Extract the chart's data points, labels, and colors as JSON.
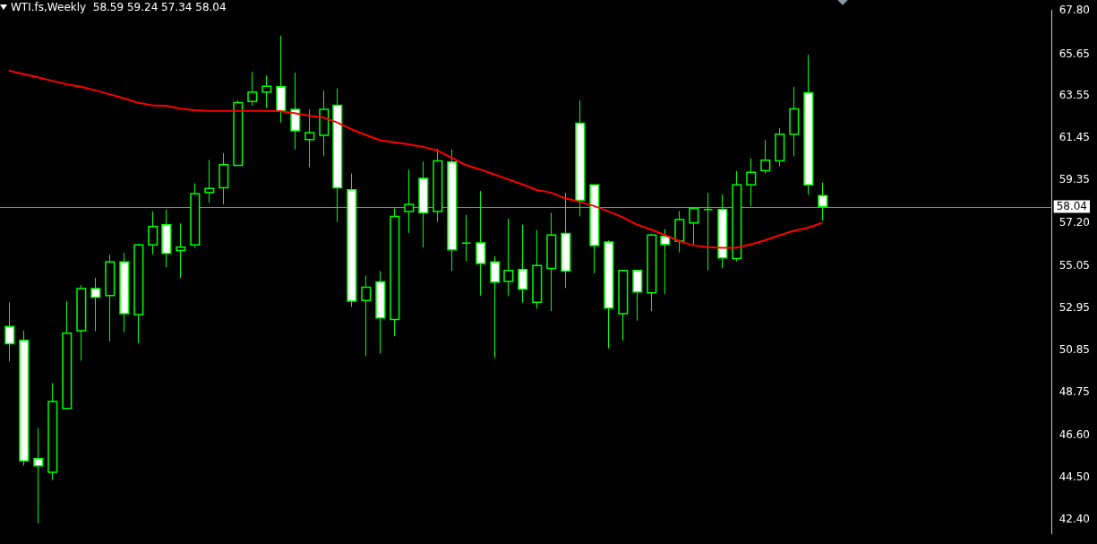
{
  "chart_data": {
    "type": "candlestick",
    "title": "WTI.fs,Weekly  58.59 59.24 57.34 58.04",
    "color": "#00ff00",
    "categories": [
      null,
      null,
      null,
      null,
      null,
      null,
      null,
      null,
      null,
      null,
      null,
      null,
      null,
      null,
      null,
      null,
      null,
      null,
      null,
      null,
      null,
      null,
      null,
      null,
      null,
      null,
      null,
      null,
      null,
      null,
      null,
      null,
      null,
      null,
      null,
      null,
      null,
      null,
      null,
      null,
      null,
      null,
      null,
      null,
      null,
      null,
      null,
      null,
      null,
      null,
      null,
      null,
      null,
      null,
      null,
      null,
      null,
      null
    ],
    "ohlc": [
      [
        52.06,
        53.26,
        50.31,
        51.2
      ],
      [
        51.36,
        51.85,
        45.11,
        45.35
      ],
      [
        45.46,
        46.98,
        42.23,
        45.1
      ],
      [
        44.78,
        49.23,
        44.4,
        48.31
      ],
      [
        47.97,
        53.32,
        47.97,
        51.72
      ],
      [
        51.85,
        54.12,
        50.35,
        53.95
      ],
      [
        53.95,
        54.48,
        51.82,
        53.51
      ],
      [
        53.6,
        55.65,
        51.32,
        55.28
      ],
      [
        55.28,
        55.73,
        51.78,
        52.7
      ],
      [
        52.65,
        56.18,
        51.22,
        56.13
      ],
      [
        56.13,
        57.8,
        55.65,
        57.05
      ],
      [
        57.14,
        57.88,
        55.01,
        55.7
      ],
      [
        55.85,
        57.2,
        54.48,
        56.02
      ],
      [
        56.13,
        59.2,
        55.98,
        58.68
      ],
      [
        58.75,
        60.37,
        58.23,
        58.95
      ],
      [
        58.98,
        60.7,
        58.15,
        60.13
      ],
      [
        60.1,
        63.35,
        60.1,
        63.23
      ],
      [
        63.29,
        64.75,
        63.08,
        63.75
      ],
      [
        63.75,
        64.58,
        62.97,
        64.05
      ],
      [
        64.02,
        66.57,
        62.24,
        62.82
      ],
      [
        62.89,
        64.72,
        60.9,
        61.82
      ],
      [
        61.38,
        62.9,
        60.0,
        61.73
      ],
      [
        61.6,
        63.82,
        60.58,
        62.89
      ],
      [
        63.1,
        63.94,
        57.28,
        58.98
      ],
      [
        58.88,
        59.69,
        53.03,
        53.32
      ],
      [
        53.35,
        54.6,
        50.58,
        54.02
      ],
      [
        54.28,
        54.82,
        50.7,
        52.48
      ],
      [
        52.4,
        57.95,
        51.57,
        57.55
      ],
      [
        57.79,
        59.88,
        56.73,
        58.15
      ],
      [
        59.45,
        60.28,
        56.0,
        57.73
      ],
      [
        57.79,
        60.93,
        57.28,
        60.32
      ],
      [
        60.27,
        60.89,
        54.83,
        55.88
      ],
      [
        56.22,
        57.62,
        55.32,
        56.22
      ],
      [
        56.23,
        58.82,
        53.6,
        55.2
      ],
      [
        55.28,
        55.57,
        50.48,
        54.27
      ],
      [
        54.3,
        57.43,
        53.57,
        54.85
      ],
      [
        54.9,
        57.14,
        53.25,
        53.91
      ],
      [
        53.26,
        56.86,
        52.95,
        55.1
      ],
      [
        54.95,
        57.73,
        52.82,
        56.62
      ],
      [
        56.7,
        58.72,
        53.98,
        54.82
      ],
      [
        62.2,
        63.33,
        57.55,
        58.35
      ],
      [
        59.12,
        59.12,
        54.71,
        56.1
      ],
      [
        56.27,
        56.35,
        50.96,
        52.97
      ],
      [
        52.7,
        54.88,
        51.35,
        54.85
      ],
      [
        54.85,
        54.85,
        52.35,
        53.78
      ],
      [
        53.73,
        56.68,
        52.82,
        56.62
      ],
      [
        56.55,
        56.92,
        53.68,
        56.15
      ],
      [
        56.32,
        57.81,
        55.75,
        57.39
      ],
      [
        57.22,
        58.02,
        56.15,
        57.95
      ],
      [
        57.9,
        58.72,
        54.85,
        57.9
      ],
      [
        57.9,
        58.65,
        54.97,
        55.48
      ],
      [
        55.45,
        59.82,
        55.32,
        59.12
      ],
      [
        59.12,
        60.45,
        58.05,
        59.75
      ],
      [
        59.83,
        61.37,
        59.69,
        60.35
      ],
      [
        60.32,
        61.95,
        60.05,
        61.65
      ],
      [
        61.65,
        64.02,
        60.55,
        62.92
      ],
      [
        63.72,
        65.62,
        58.63,
        59.12
      ],
      [
        58.59,
        59.24,
        57.34,
        58.04
      ]
    ],
    "series": [
      {
        "type": "line",
        "color": "#ff0000",
        "values": [
          64.82,
          64.65,
          64.49,
          64.32,
          64.15,
          64.02,
          63.85,
          63.65,
          63.45,
          63.23,
          63.1,
          63.07,
          62.93,
          62.85,
          62.82,
          62.82,
          62.82,
          62.82,
          62.82,
          62.8,
          62.7,
          62.58,
          62.49,
          62.24,
          61.9,
          61.62,
          61.35,
          61.25,
          61.15,
          61.02,
          60.85,
          60.49,
          60.12,
          59.9,
          59.65,
          59.4,
          59.15,
          58.87,
          58.74,
          58.45,
          58.28,
          58.08,
          57.81,
          57.52,
          57.15,
          56.9,
          56.62,
          56.32,
          56.1,
          56.02,
          55.98,
          55.98,
          56.15,
          56.35,
          56.6,
          56.82,
          56.98,
          57.22
        ]
      }
    ],
    "ylim": [
      41.7,
      67.85
    ],
    "yticks": [
      {
        "value": 42.4,
        "label": "42.40"
      },
      {
        "value": 44.5,
        "label": "44.50"
      },
      {
        "value": 46.6,
        "label": "46.60"
      },
      {
        "value": 48.75,
        "label": "48.75"
      },
      {
        "value": 50.85,
        "label": "50.85"
      },
      {
        "value": 52.95,
        "label": "52.95"
      },
      {
        "value": 55.05,
        "label": "55.05"
      },
      {
        "value": 57.2,
        "label": "57.20"
      },
      {
        "value": 59.35,
        "label": "59.35"
      },
      {
        "value": 61.45,
        "label": "61.45"
      },
      {
        "value": 63.55,
        "label": "63.55"
      },
      {
        "value": 65.65,
        "label": "65.65"
      },
      {
        "value": 67.8,
        "label": "67.80"
      }
    ],
    "ref_lines": [
      {
        "axis": "y",
        "value": 58.04,
        "label": "58.04",
        "color": "#7f8890"
      }
    ],
    "tick_labels": "y"
  }
}
